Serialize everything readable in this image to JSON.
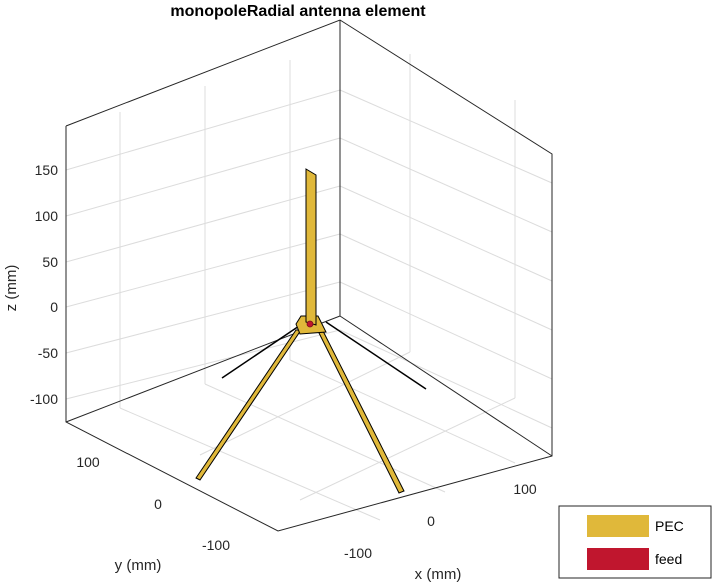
{
  "title": "monopoleRadial antenna element",
  "axes": {
    "z_label": "z (mm)",
    "y_label": "y (mm)",
    "x_label": "x (mm)",
    "z_ticks": [
      "150",
      "100",
      "50",
      "0",
      "-50",
      "-100"
    ],
    "y_ticks": [
      "100",
      "0",
      "-100"
    ],
    "x_ticks": [
      "100",
      "0",
      "-100"
    ]
  },
  "legend": {
    "items": [
      {
        "label": "PEC",
        "color": "#e0b83a"
      },
      {
        "label": "feed",
        "color": "#c0162e"
      }
    ]
  },
  "colors": {
    "pec": "#e0b83a",
    "feed": "#c0162e",
    "edge": "#000000"
  }
}
